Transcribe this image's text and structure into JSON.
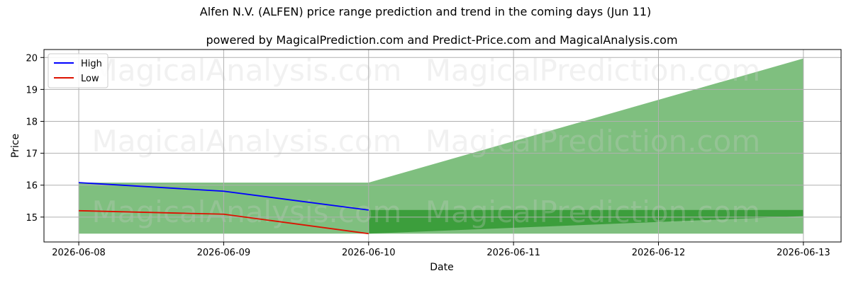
{
  "chart_data": {
    "type": "area",
    "title": "Alfen N.V. (ALFEN) price range prediction and trend in the coming days (Jun 11)",
    "subtitle": "powered by MagicalPrediction.com and Predict-Price.com and MagicalAnalysis.com",
    "xlabel": "Date",
    "ylabel": "Price",
    "x": [
      "2026-06-08",
      "2026-06-09",
      "2026-06-10",
      "2026-06-11",
      "2026-06-12",
      "2026-06-13"
    ],
    "xlim": [
      -0.24,
      5.26
    ],
    "ylim": [
      14.22,
      20.25
    ],
    "yticks": [
      15,
      16,
      17,
      18,
      19,
      20
    ],
    "grid": true,
    "legend_position": "top-left",
    "series": [
      {
        "name": "High",
        "color": "#0000ff",
        "x": [
          0,
          1,
          2
        ],
        "values": [
          16.08,
          15.81,
          15.22
        ]
      },
      {
        "name": "Low",
        "color": "#dd1100",
        "x": [
          0,
          1,
          2
        ],
        "values": [
          15.2,
          15.09,
          14.48
        ]
      }
    ],
    "bands": [
      {
        "color": "#7fbf7f",
        "x": [
          0,
          2
        ],
        "upper": [
          16.08,
          16.08
        ],
        "lower": [
          14.48,
          14.48
        ]
      },
      {
        "color": "#7fbf7f",
        "x": [
          2,
          5
        ],
        "upper": [
          16.08,
          19.97
        ],
        "lower": [
          14.48,
          14.48
        ]
      },
      {
        "color": "#3c9e3c",
        "x": [
          2,
          5
        ],
        "upper": [
          15.22,
          15.22
        ],
        "lower": [
          14.48,
          15.03
        ]
      },
      {
        "color": "#3c9e3c",
        "x": [
          2,
          5
        ],
        "upper": [
          15.22,
          15.22
        ],
        "lower": [
          15.03,
          15.03
        ]
      }
    ]
  },
  "watermarks": [
    "MagicalAnalysis.com",
    "MagicalPrediction.com"
  ]
}
